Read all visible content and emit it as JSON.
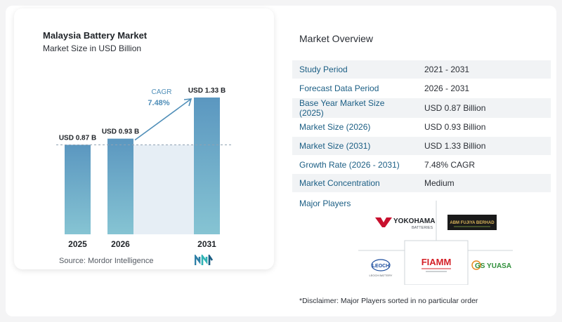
{
  "chart": {
    "title": "Malaysia Battery Market",
    "subtitle": "Market Size in USD Billion",
    "source": "Source:  Mordor Intelligence",
    "cagr_label": "CAGR",
    "cagr_value": "7.48%"
  },
  "chart_data": {
    "type": "bar",
    "categories": [
      "2025",
      "2026",
      "2031"
    ],
    "values": [
      0.87,
      0.93,
      1.33
    ],
    "data_labels": [
      "USD 0.87 B",
      "USD 0.93 B",
      "USD 1.33 B"
    ],
    "title": "Malaysia Battery Market",
    "subtitle": "Market Size in USD Billion",
    "xlabel": "",
    "ylabel": "",
    "ylim": [
      0,
      1.4
    ],
    "annotation": "CAGR 7.48%",
    "colors": {
      "bar": "#4f8eb8",
      "bar_top": "#5b97c0",
      "bar_bottom": "#86c4d3",
      "shade": "#e6eef5",
      "reference_line": "#8fa2b3"
    }
  },
  "overview": {
    "title": "Market Overview",
    "rows": [
      {
        "key": "Study Period",
        "value": "2021 - 2031"
      },
      {
        "key": "Forecast Data Period",
        "value": "2026 - 2031"
      },
      {
        "key": "Base Year Market Size (2025)",
        "value": "USD 0.87 Billion"
      },
      {
        "key": "Market Size (2026)",
        "value": "USD 0.93 Billion"
      },
      {
        "key": "Market Size (2031)",
        "value": "USD 1.33 Billion"
      },
      {
        "key": "Growth Rate (2026 - 2031)",
        "value": "7.48% CAGR"
      },
      {
        "key": "Market Concentration",
        "value": "Medium"
      }
    ],
    "players_title": "Major Players",
    "players": [
      {
        "name": "YOKOHAMA",
        "sub": "BATTERIES"
      },
      {
        "name": "ABM FUJIYA BERHAD"
      },
      {
        "name": "FIAMM"
      },
      {
        "name": "GS YUASA"
      },
      {
        "name": "LEOCH",
        "sub": "LEOCH BATTERY"
      }
    ],
    "disclaimer": "*Disclaimer: Major Players sorted in no particular order"
  },
  "colors": {
    "accent": "#1b5e84",
    "table_stripe": "#f1f3f5"
  }
}
